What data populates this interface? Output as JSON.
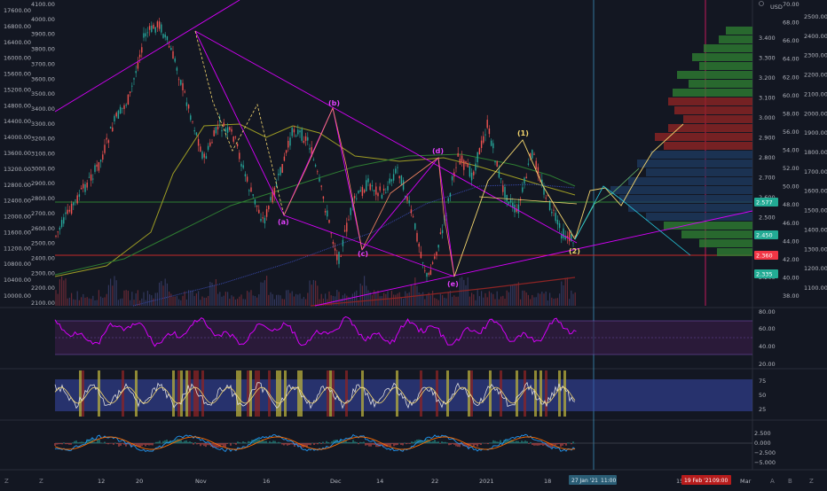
{
  "chart_data": {
    "type": "line",
    "series": [
      {
        "values": [
          11600,
          12300,
          12900,
          13500,
          14600,
          15200,
          16800,
          17100,
          16200,
          14900,
          13600,
          14500,
          14200,
          12900,
          12000,
          13100,
          14400,
          14100,
          12600,
          11000,
          12500,
          13000,
          12700,
          13400,
          12100,
          10500,
          11800,
          13700,
          13200,
          14500,
          12900,
          12200,
          13800,
          12600,
          11700,
          11500
        ]
      }
    ],
    "ylim": [
      10000,
      17600
    ],
    "left_axis_ticks": [
      "17600.00",
      "16800.00",
      "16400.00",
      "16000.00",
      "15600.00",
      "15200.00",
      "14800.00",
      "14400.00",
      "14000.00",
      "13600.00",
      "13200.00",
      "12800.00",
      "12400.00",
      "12000.00",
      "11600.00",
      "11200.00",
      "10800.00",
      "10400.00",
      "10000.00"
    ],
    "left_axis_top_ticks": [
      "4100.00",
      "4000.00",
      "3900.00",
      "3800.00",
      "3700.00",
      "3600.00",
      "3500.00",
      "3400.00",
      "3300.00",
      "3200.00",
      "3100.00",
      "3000.00",
      "2900.00",
      "2800.00",
      "2700.00",
      "2600.00",
      "2500.00",
      "2400.00",
      "2300.00",
      "2200.00",
      "2100.00"
    ],
    "right_axis_ticks": [
      "3.400",
      "3.300",
      "3.200",
      "3.100",
      "3.000",
      "2.900",
      "2.800",
      "2.700",
      "2.600",
      "2.500",
      "2.400",
      "2.300",
      "2.200"
    ],
    "right_axis_usd_label": "USD",
    "right_axis_2_ticks": [
      "70.00",
      "68.00",
      "66.00",
      "64.00",
      "62.00",
      "60.00",
      "58.00",
      "56.00",
      "54.00",
      "52.00",
      "50.00",
      "48.00",
      "46.00",
      "44.00",
      "42.00",
      "40.00",
      "38.00"
    ],
    "right_axis_3_ticks": [
      "2500.00",
      "2400.00",
      "2300.00",
      "2200.00",
      "2100.00",
      "2000.00",
      "1900.00",
      "1800.00",
      "1700.00",
      "1600.00",
      "1500.00",
      "1400.00",
      "1300.00",
      "1200.00",
      "1100.00"
    ],
    "price_badges": [
      {
        "text": "2.577",
        "color": "#22ab94"
      },
      {
        "text": "2.450",
        "color": "#22ab94"
      },
      {
        "text": "2.360",
        "color": "#f23645"
      },
      {
        "text": "2.335",
        "color": "#22ab94"
      }
    ],
    "wave_labels": [
      "(a)",
      "(b)",
      "(c)",
      "(d)",
      "(e)",
      "(1)",
      "(2)"
    ],
    "x_ticks": [
      "12",
      "20",
      "Nov",
      "16",
      "Dec",
      "14",
      "22",
      "2021",
      "18",
      "15",
      "Mar"
    ],
    "x_tick_highlights": [
      "27 Jan '21",
      "11:00",
      "19 Feb '21",
      "09:00"
    ],
    "rsi_axis_ticks": [
      "80.00",
      "60.00",
      "40.00",
      "20.00"
    ],
    "stoch_axis_ticks": [
      "75",
      "50",
      "25"
    ],
    "macd_axis_ticks": [
      "2.500",
      "0.000",
      "−2.500",
      "−5.000"
    ],
    "colors": {
      "background": "#131722",
      "accent_magenta": "#d500f9",
      "candle_up": "#26a69a",
      "candle_down": "#ef5350",
      "badge_red": "#f23645",
      "badge_green": "#22ab94"
    }
  },
  "footer": {
    "left_icon_letters": [
      "Z",
      "Z"
    ],
    "right_icon_letters": [
      "A",
      "B",
      "Z"
    ]
  }
}
